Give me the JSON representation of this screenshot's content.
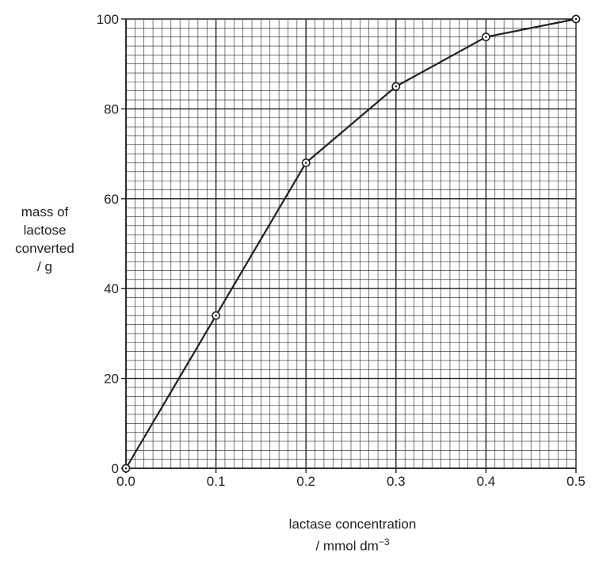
{
  "chart_data": {
    "type": "line",
    "x": [
      0.0,
      0.1,
      0.2,
      0.3,
      0.4,
      0.5
    ],
    "series": [
      {
        "values": [
          0,
          34,
          68,
          85,
          96,
          100
        ]
      }
    ],
    "xlim": [
      0.0,
      0.5
    ],
    "ylim": [
      0,
      100
    ],
    "x_ticks": [
      "0.0",
      "0.1",
      "0.2",
      "0.3",
      "0.4",
      "0.5"
    ],
    "y_ticks": [
      "0",
      "20",
      "40",
      "60",
      "80",
      "100"
    ],
    "ylabel_lines": [
      "mass of",
      "lactose",
      "converted",
      "/ g"
    ],
    "xlabel_line1": "lactase concentration",
    "xlabel_unit": "/ mmol dm",
    "xlabel_exponent": "−3",
    "grid": true,
    "marker": "circle-with-dot",
    "colors": {
      "line": "#231f20",
      "grid": "#231f20",
      "background": "#ffffff"
    }
  }
}
